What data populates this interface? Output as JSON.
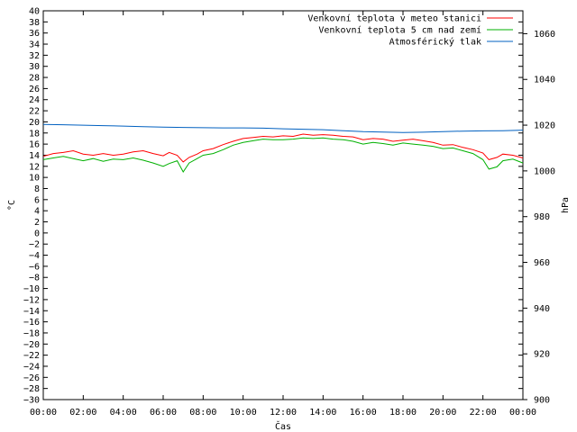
{
  "chart_data": {
    "type": "line",
    "xlabel": "Čas",
    "ylabel_left": "°C",
    "ylabel_right": "hPa",
    "x_ticks": [
      "00:00",
      "02:00",
      "04:00",
      "06:00",
      "08:00",
      "10:00",
      "12:00",
      "14:00",
      "16:00",
      "18:00",
      "20:00",
      "22:00",
      "00:00"
    ],
    "x_range_hours": [
      0,
      24
    ],
    "ylim_left": [
      -30,
      40
    ],
    "ylim_right": [
      900,
      1070
    ],
    "left_ticks": [
      40,
      38,
      36,
      34,
      32,
      30,
      28,
      26,
      24,
      22,
      20,
      18,
      16,
      14,
      12,
      10,
      8,
      6,
      4,
      2,
      0,
      -2,
      -4,
      -6,
      -8,
      -10,
      -12,
      -14,
      -16,
      -18,
      -20,
      -22,
      -24,
      -26,
      -28,
      -30
    ],
    "left_tick_labels": [
      "40",
      "38",
      "36",
      "34",
      "32",
      "30",
      "28",
      "26",
      "24",
      "22",
      "20",
      "18",
      "16",
      "14",
      "12",
      "10",
      "8",
      "6",
      "4",
      "2",
      "0",
      "−2",
      "−4",
      "−6",
      "−8",
      "−10",
      "−12",
      "−14",
      "−16",
      "−18",
      "−20",
      "−22",
      "−24",
      "−26",
      "−28",
      "−30"
    ],
    "right_ticks": [
      1060,
      1040,
      1020,
      1000,
      980,
      960,
      940,
      920,
      900
    ],
    "legend_position": "top-right",
    "series": [
      {
        "name": "Venkovní teplota v meteo stanici",
        "color": "#ff0000",
        "axis": "left",
        "x": [
          0,
          0.5,
          1,
          1.5,
          2,
          2.5,
          3,
          3.5,
          4,
          4.5,
          5,
          5.5,
          6,
          6.3,
          6.7,
          7,
          7.3,
          7.7,
          8,
          8.5,
          9,
          9.5,
          10,
          10.5,
          11,
          11.5,
          12,
          12.5,
          13,
          13.5,
          14,
          14.5,
          15,
          15.5,
          16,
          16.5,
          17,
          17.5,
          18,
          18.5,
          19,
          19.5,
          20,
          20.5,
          21,
          21.5,
          22,
          22.3,
          22.7,
          23,
          23.5,
          24
        ],
        "values": [
          13.8,
          14.3,
          14.5,
          14.8,
          14.2,
          14.0,
          14.3,
          14.0,
          14.2,
          14.6,
          14.8,
          14.3,
          13.9,
          14.5,
          14.0,
          12.8,
          13.6,
          14.2,
          14.8,
          15.2,
          15.9,
          16.5,
          17.0,
          17.2,
          17.4,
          17.3,
          17.5,
          17.4,
          17.8,
          17.6,
          17.7,
          17.6,
          17.4,
          17.3,
          16.8,
          17.0,
          16.9,
          16.5,
          16.7,
          16.9,
          16.6,
          16.3,
          15.8,
          15.9,
          15.4,
          15.0,
          14.4,
          13.2,
          13.6,
          14.2,
          14.0,
          13.5
        ]
      },
      {
        "name": "Venkovní teplota 5 cm nad zemí",
        "color": "#00b000",
        "axis": "left",
        "x": [
          0,
          0.5,
          1,
          1.5,
          2,
          2.5,
          3,
          3.5,
          4,
          4.5,
          5,
          5.5,
          6,
          6.3,
          6.7,
          7,
          7.3,
          7.7,
          8,
          8.5,
          9,
          9.5,
          10,
          10.5,
          11,
          11.5,
          12,
          12.5,
          13,
          13.5,
          14,
          14.5,
          15,
          15.5,
          16,
          16.5,
          17,
          17.5,
          18,
          18.5,
          19,
          19.5,
          20,
          20.5,
          21,
          21.5,
          22,
          22.3,
          22.7,
          23,
          23.5,
          24
        ],
        "values": [
          13.2,
          13.5,
          13.8,
          13.4,
          13.0,
          13.4,
          12.9,
          13.3,
          13.2,
          13.5,
          13.1,
          12.6,
          12.0,
          12.5,
          13.0,
          11.0,
          12.6,
          13.4,
          14.0,
          14.3,
          15.0,
          15.8,
          16.3,
          16.6,
          16.9,
          16.8,
          16.8,
          16.9,
          17.1,
          17.0,
          17.1,
          16.9,
          16.8,
          16.5,
          16.0,
          16.3,
          16.1,
          15.8,
          16.2,
          16.0,
          15.8,
          15.6,
          15.2,
          15.3,
          14.8,
          14.3,
          13.2,
          11.5,
          11.9,
          13.0,
          13.3,
          12.6
        ]
      },
      {
        "name": "Atmosférický tlak",
        "color": "#0060c0",
        "axis": "right",
        "x": [
          0,
          1,
          2,
          3,
          4,
          5,
          6,
          7,
          8,
          9,
          10,
          11,
          12,
          13,
          14,
          15,
          16,
          17,
          18,
          19,
          20,
          21,
          22,
          23,
          24
        ],
        "values": [
          1020.3,
          1020.2,
          1020.0,
          1019.8,
          1019.6,
          1019.3,
          1019.1,
          1019.0,
          1018.9,
          1018.8,
          1018.8,
          1018.7,
          1018.4,
          1018.2,
          1018.0,
          1017.6,
          1017.2,
          1017.0,
          1016.8,
          1016.9,
          1017.2,
          1017.4,
          1017.5,
          1017.6,
          1017.8
        ]
      }
    ]
  }
}
